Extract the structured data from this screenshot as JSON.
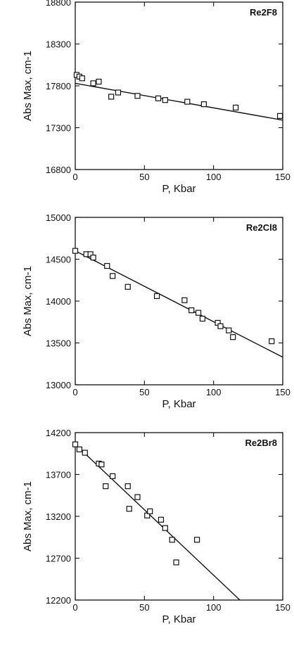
{
  "chart_data": [
    {
      "type": "scatter",
      "title": "Re2F8",
      "xlabel": "P, Kbar",
      "ylabel": "Abs Max, cm-1",
      "xlim": [
        0,
        150
      ],
      "ylim": [
        16800,
        18800
      ],
      "x_ticks": [
        0,
        50,
        100,
        150
      ],
      "y_ticks": [
        16800,
        17300,
        17800,
        18300,
        18800
      ],
      "grid": false,
      "series": [
        {
          "x": [
            1,
            3,
            5,
            13,
            17,
            26,
            31,
            45,
            60,
            65,
            81,
            93,
            116,
            148
          ],
          "y": [
            17930,
            17910,
            17890,
            17830,
            17850,
            17670,
            17720,
            17680,
            17650,
            17630,
            17610,
            17580,
            17540,
            17440
          ]
        }
      ],
      "fit_line": {
        "x": [
          0,
          150
        ],
        "y": [
          17830,
          17390
        ]
      }
    },
    {
      "type": "scatter",
      "title": "Re2Cl8",
      "xlabel": "P, Kbar",
      "ylabel": "Abs Max, cm-1",
      "xlim": [
        0,
        150
      ],
      "ylim": [
        13000,
        15000
      ],
      "x_ticks": [
        0,
        50,
        100,
        150
      ],
      "y_ticks": [
        13000,
        13500,
        14000,
        14500,
        15000
      ],
      "grid": false,
      "series": [
        {
          "x": [
            0,
            8,
            11,
            13,
            23,
            27,
            38,
            59,
            79,
            84,
            89,
            92,
            103,
            105,
            111,
            114,
            142
          ],
          "y": [
            14600,
            14560,
            14560,
            14520,
            14420,
            14300,
            14170,
            14060,
            14010,
            13890,
            13860,
            13790,
            13740,
            13700,
            13650,
            13570,
            13520
          ]
        }
      ],
      "fit_line": {
        "x": [
          0,
          150
        ],
        "y": [
          14600,
          13330
        ]
      }
    },
    {
      "type": "scatter",
      "title": "Re2Br8",
      "xlabel": "P, Kbar",
      "ylabel": "Abs Max, cm-1",
      "xlim": [
        0,
        150
      ],
      "ylim": [
        12200,
        14200
      ],
      "x_ticks": [
        0,
        50,
        100,
        150
      ],
      "y_ticks": [
        12200,
        12700,
        13200,
        13700,
        14200
      ],
      "grid": false,
      "series": [
        {
          "x": [
            0,
            3,
            7,
            17,
            19,
            22,
            27,
            38,
            39,
            45,
            52,
            54,
            62,
            65,
            70,
            73,
            88
          ],
          "y": [
            14060,
            14000,
            13960,
            13830,
            13820,
            13560,
            13680,
            13560,
            13290,
            13430,
            13210,
            13260,
            13160,
            13060,
            12920,
            12650,
            12920
          ]
        }
      ],
      "fit_line": {
        "x": [
          0,
          119
        ],
        "y": [
          14060,
          12200
        ]
      }
    }
  ]
}
